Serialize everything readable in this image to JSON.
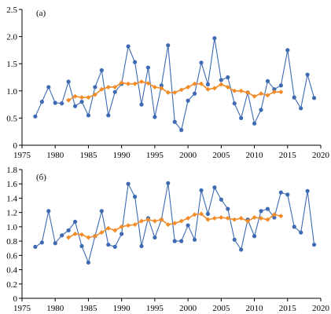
{
  "chart_data": [
    {
      "type": "line",
      "panel_label": "(a)",
      "xlim": [
        1975,
        2020
      ],
      "ylim": [
        0,
        2.5
      ],
      "x_ticks": [
        "1975",
        "1980",
        "1985",
        "1990",
        "1995",
        "2000",
        "2005",
        "2010",
        "2015",
        "2020"
      ],
      "y_ticks": [
        "0",
        "0.5",
        "1.0",
        "1.5",
        "2.0",
        "2.5"
      ],
      "grid": false,
      "series": [
        {
          "color": "#3d6ab3",
          "marker": "circle",
          "x": [
            1977,
            1978,
            1979,
            1980,
            1981,
            1982,
            1983,
            1984,
            1985,
            1986,
            1987,
            1988,
            1989,
            1990,
            1991,
            1992,
            1993,
            1994,
            1995,
            1996,
            1997,
            1998,
            1999,
            2000,
            2001,
            2002,
            2003,
            2004,
            2005,
            2006,
            2007,
            2008,
            2009,
            2010,
            2011,
            2012,
            2013,
            2014,
            2015,
            2016,
            2017,
            2018,
            2019
          ],
          "values": [
            0.53,
            0.8,
            1.07,
            0.78,
            0.77,
            1.17,
            0.72,
            0.8,
            0.55,
            1.07,
            1.38,
            0.55,
            0.98,
            1.13,
            1.82,
            1.53,
            0.75,
            1.43,
            0.52,
            1.1,
            1.84,
            0.43,
            0.28,
            0.82,
            0.95,
            1.52,
            1.12,
            1.97,
            1.2,
            1.25,
            0.77,
            0.5,
            0.97,
            0.4,
            0.65,
            1.18,
            1.03,
            1.1,
            1.75,
            0.88,
            0.68,
            1.3,
            0.87
          ]
        },
        {
          "color": "#f28c28",
          "marker": "diamond",
          "x": [
            1982,
            1983,
            1984,
            1985,
            1986,
            1987,
            1988,
            1989,
            1990,
            1991,
            1992,
            1993,
            1994,
            1995,
            1996,
            1997,
            1998,
            1999,
            2000,
            2001,
            2002,
            2003,
            2004,
            2005,
            2006,
            2007,
            2008,
            2009,
            2010,
            2011,
            2012,
            2013,
            2014
          ],
          "values": [
            0.83,
            0.9,
            0.88,
            0.88,
            0.93,
            1.03,
            1.07,
            1.07,
            1.15,
            1.13,
            1.13,
            1.17,
            1.14,
            1.07,
            1.05,
            0.97,
            0.97,
            1.02,
            1.07,
            1.13,
            1.13,
            1.03,
            1.05,
            1.12,
            1.07,
            1.0,
            1.0,
            0.97,
            0.9,
            0.95,
            0.92,
            0.98,
            0.98
          ]
        }
      ]
    },
    {
      "type": "line",
      "panel_label": "(б)",
      "xlim": [
        1975,
        2020
      ],
      "ylim": [
        0,
        1.8
      ],
      "x_ticks": [
        "1975",
        "1980",
        "1985",
        "1990",
        "1995",
        "2000",
        "2005",
        "2010",
        "2015",
        "2020"
      ],
      "y_ticks": [
        "0",
        "0.2",
        "0.4",
        "0.6",
        "0.8",
        "1.0",
        "1.2",
        "1.4",
        "1.6",
        "1.8"
      ],
      "grid": false,
      "series": [
        {
          "color": "#3d6ab3",
          "marker": "circle",
          "x": [
            1977,
            1978,
            1979,
            1980,
            1981,
            1982,
            1983,
            1984,
            1985,
            1986,
            1987,
            1988,
            1989,
            1990,
            1991,
            1992,
            1993,
            1994,
            1995,
            1996,
            1997,
            1998,
            1999,
            2000,
            2001,
            2002,
            2003,
            2004,
            2005,
            2006,
            2007,
            2008,
            2009,
            2010,
            2011,
            2012,
            2013,
            2014,
            2015,
            2016,
            2017,
            2018,
            2019
          ],
          "values": [
            0.72,
            0.78,
            1.22,
            0.77,
            0.88,
            0.95,
            1.07,
            0.73,
            0.5,
            0.87,
            1.22,
            0.75,
            0.72,
            0.9,
            1.6,
            1.42,
            0.73,
            1.12,
            0.85,
            1.1,
            1.61,
            0.8,
            0.8,
            1.02,
            0.82,
            1.51,
            1.18,
            1.55,
            1.38,
            1.25,
            0.82,
            0.68,
            1.1,
            0.87,
            1.22,
            1.25,
            1.13,
            1.48,
            1.45,
            1.0,
            0.92,
            1.5,
            0.75
          ]
        },
        {
          "color": "#f28c28",
          "marker": "diamond",
          "x": [
            1982,
            1983,
            1984,
            1985,
            1986,
            1987,
            1988,
            1989,
            1990,
            1991,
            1992,
            1993,
            1994,
            1995,
            1996,
            1997,
            1998,
            1999,
            2000,
            2001,
            2002,
            2003,
            2004,
            2005,
            2006,
            2007,
            2008,
            2009,
            2010,
            2011,
            2012,
            2013,
            2014
          ],
          "values": [
            0.85,
            0.9,
            0.89,
            0.85,
            0.87,
            0.92,
            0.98,
            0.95,
            1.0,
            1.02,
            1.03,
            1.08,
            1.1,
            1.08,
            1.1,
            1.03,
            1.05,
            1.08,
            1.12,
            1.17,
            1.18,
            1.1,
            1.12,
            1.13,
            1.12,
            1.1,
            1.12,
            1.08,
            1.13,
            1.12,
            1.1,
            1.17,
            1.15
          ]
        }
      ]
    }
  ]
}
